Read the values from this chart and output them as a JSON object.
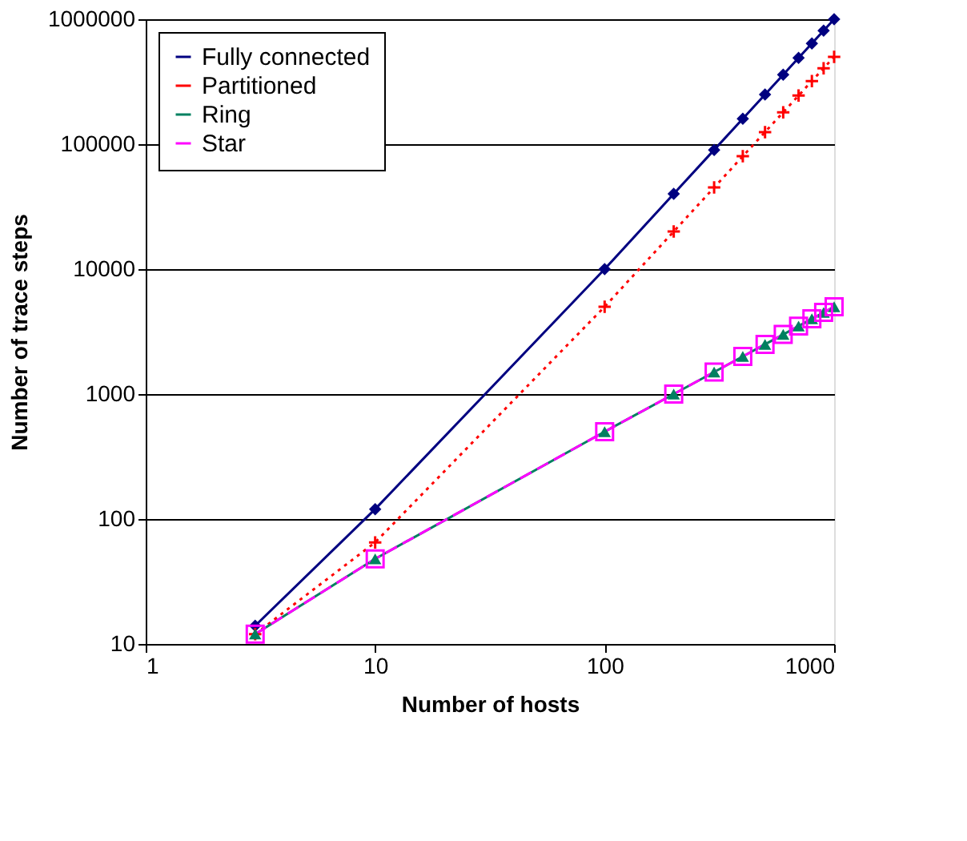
{
  "chart_data": {
    "type": "line",
    "xlabel": "Number of hosts",
    "ylabel": "Number of trace steps",
    "log": "xy",
    "xlim": [
      1,
      1000
    ],
    "xticks": [
      1,
      10,
      100,
      1000
    ],
    "ylim": [
      10,
      1000000
    ],
    "yticks": [
      10,
      100,
      1000,
      10000,
      100000,
      1000000
    ],
    "grid": "y",
    "legend": "top left",
    "x": [
      3,
      10,
      100,
      200,
      300,
      400,
      500,
      600,
      700,
      800,
      900,
      1000
    ],
    "series": [
      {
        "name": "Fully connected",
        "color": "#000080",
        "marker": "diamond",
        "line_style": "solid",
        "values": [
          14,
          120,
          10000,
          40000,
          90000,
          160000,
          250000,
          360000,
          490000,
          640000,
          810000,
          1000000
        ]
      },
      {
        "name": "Partitioned",
        "color": "#ff0000",
        "marker": "cross",
        "line_style": "dotted",
        "values": [
          12,
          65,
          5000,
          20000,
          45000,
          80000,
          125000,
          180000,
          245000,
          320000,
          405000,
          500000
        ]
      },
      {
        "name": "Ring",
        "color": "#008060",
        "marker": "triangle",
        "line_style": "solid",
        "values": [
          12,
          48,
          500,
          1000,
          1500,
          2000,
          2500,
          3000,
          3500,
          4000,
          4500,
          5000
        ]
      },
      {
        "name": "Star",
        "color": "#ff00ff",
        "marker": "square",
        "line_style": "dashed",
        "values": [
          12,
          48,
          500,
          1000,
          1500,
          2000,
          2500,
          3000,
          3500,
          4000,
          4500,
          5000
        ]
      }
    ]
  }
}
